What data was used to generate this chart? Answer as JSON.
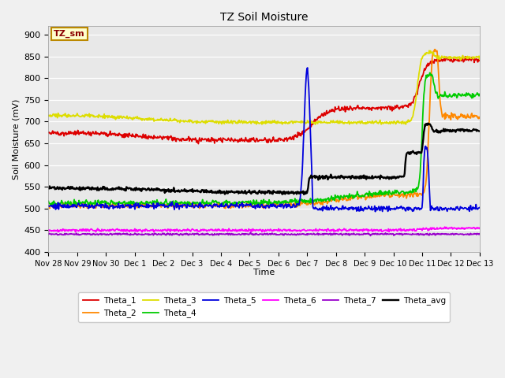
{
  "title": "TZ Soil Moisture",
  "xlabel": "Time",
  "ylabel": "Soil Moisture (mV)",
  "ylim": [
    400,
    920
  ],
  "yticks": [
    400,
    450,
    500,
    550,
    600,
    650,
    700,
    750,
    800,
    850,
    900
  ],
  "legend_label": "TZ_sm",
  "bg_color": "#e8e8e8",
  "fig_bg": "#f0f0f0",
  "series_colors": {
    "Theta_1": "#dd0000",
    "Theta_2": "#ff8800",
    "Theta_3": "#dddd00",
    "Theta_4": "#00cc00",
    "Theta_5": "#0000dd",
    "Theta_6": "#ff00ff",
    "Theta_7": "#9900cc",
    "Theta_avg": "#000000"
  },
  "xtick_labels": [
    "Nov 28",
    "Nov 29",
    "Nov 30",
    "Dec 1",
    "Dec 2",
    "Dec 3",
    "Dec 4",
    "Dec 5",
    "Dec 6",
    "Dec 7",
    "Dec 8",
    "Dec 9",
    "Dec 10",
    "Dec 11",
    "Dec 12",
    "Dec 13"
  ],
  "legend_order": [
    "Theta_1",
    "Theta_2",
    "Theta_3",
    "Theta_4",
    "Theta_5",
    "Theta_6",
    "Theta_7",
    "Theta_avg"
  ]
}
